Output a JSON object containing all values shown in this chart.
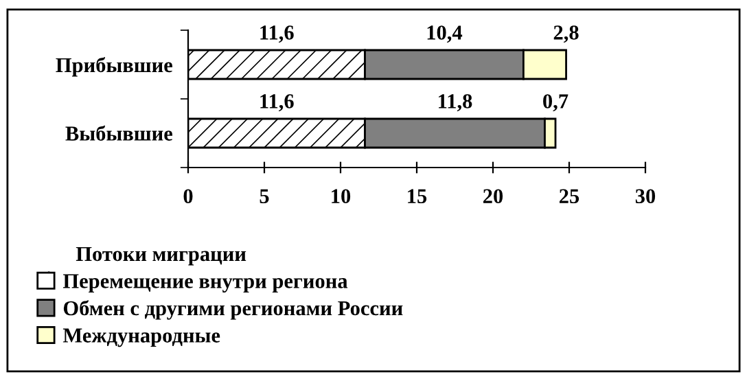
{
  "chart_data": {
    "type": "bar",
    "orientation": "horizontal",
    "stacked": true,
    "categories": [
      "Прибывшие",
      "Выбывшие"
    ],
    "series": [
      {
        "name": "Перемещение внутри региона",
        "color": "#ffffff",
        "values": [
          11.6,
          11.6
        ],
        "value_labels": [
          "11,6",
          "11,6"
        ]
      },
      {
        "name": "Обмен с другими регионами России",
        "color": "#808080",
        "values": [
          10.4,
          11.8
        ],
        "value_labels": [
          "10,4",
          "11,8"
        ]
      },
      {
        "name": "Международные",
        "color": "#ffffcc",
        "values": [
          2.8,
          0.7
        ],
        "value_labels": [
          "2,8",
          "0,7"
        ]
      }
    ],
    "legend_title": "Потоки миграции",
    "legend": "bottom left",
    "xlim": [
      0,
      30
    ],
    "xticks": [
      0,
      5,
      10,
      15,
      20,
      25,
      30
    ],
    "grid": false
  }
}
